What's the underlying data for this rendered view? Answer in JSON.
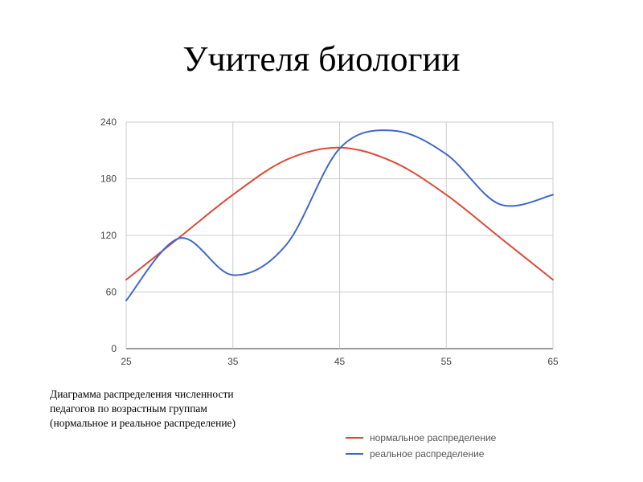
{
  "title": "Учителя биологии",
  "caption_lines": [
    "Диаграмма распределения численности",
    "педагогов по возрастным группам",
    "(нормальное и реальное распределение)"
  ],
  "chart_data": {
    "type": "line",
    "xlim": [
      25,
      65
    ],
    "ylim": [
      0,
      240
    ],
    "x_ticks": [
      25,
      35,
      45,
      55,
      65
    ],
    "y_ticks": [
      0,
      60,
      120,
      180,
      240
    ],
    "grid": true,
    "legend_position": "bottom-right",
    "series": [
      {
        "name": "нормальное распределение",
        "color": "#db4a37",
        "x": [
          25,
          30,
          35,
          40,
          45,
          50,
          55,
          60,
          65
        ],
        "values": [
          73,
          118,
          163,
          200,
          213,
          198,
          163,
          118,
          73
        ]
      },
      {
        "name": "реальное распределение",
        "color": "#3f67c9",
        "x": [
          25,
          30,
          35,
          40,
          45,
          50,
          55,
          60,
          65
        ],
        "values": [
          51,
          117,
          78,
          110,
          212,
          231,
          206,
          153,
          163
        ]
      }
    ]
  }
}
